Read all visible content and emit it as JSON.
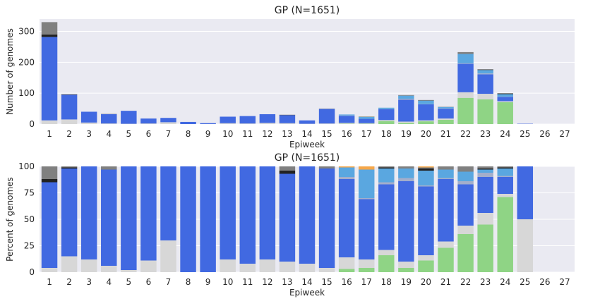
{
  "colors": {
    "background": "#ffffff",
    "plot_bg": "#eaeaf2",
    "grid": "#ffffff",
    "text": "#262626"
  },
  "series_colors": {
    "green": "#8fd485",
    "lightgray": "#d7d7d7",
    "blue": "#4169e1",
    "lightblue": "#5aa7e0",
    "steel": "#a3aecb",
    "black": "#222222",
    "gray": "#808080",
    "orange": "#f5a74a"
  },
  "chart_data": [
    {
      "type": "bar",
      "stacked": true,
      "title": "GP (N=1651)",
      "xlabel": "Epiweek",
      "ylabel": "Number of genomes",
      "ylim": [
        0,
        340
      ],
      "yticks": [
        0,
        100,
        200,
        300
      ],
      "grid": true,
      "categories": [
        "1",
        "2",
        "3",
        "4",
        "5",
        "6",
        "7",
        "8",
        "9",
        "10",
        "11",
        "12",
        "13",
        "14",
        "15",
        "16",
        "17",
        "18",
        "19",
        "20",
        "21",
        "22",
        "23",
        "24",
        "25",
        "26",
        "27"
      ],
      "series": [
        {
          "color_key": "green",
          "values": [
            0,
            0,
            0,
            0,
            0,
            0,
            0,
            0,
            0,
            0,
            0,
            0,
            0,
            0,
            0,
            1,
            1,
            10,
            4,
            9,
            14,
            85,
            80,
            71,
            0,
            0,
            0
          ]
        },
        {
          "color_key": "lightgray",
          "values": [
            12,
            15,
            5,
            2,
            1,
            2,
            6,
            0,
            0,
            3,
            2,
            4,
            3,
            1,
            2,
            3,
            2,
            3,
            4,
            3,
            4,
            18,
            18,
            3,
            0,
            0,
            0
          ]
        },
        {
          "color_key": "blue",
          "values": [
            270,
            80,
            35,
            30,
            42,
            16,
            14,
            7,
            3,
            21,
            24,
            28,
            26,
            11,
            47,
            23,
            14,
            35,
            71,
            52,
            32,
            92,
            63,
            14,
            1,
            0,
            0
          ]
        },
        {
          "color_key": "steel",
          "values": [
            0,
            0,
            0,
            0,
            0,
            0,
            0,
            0,
            0,
            0,
            0,
            0,
            0,
            0,
            0,
            1,
            0,
            1,
            3,
            1,
            1,
            2,
            3,
            1,
            0,
            0,
            0
          ]
        },
        {
          "color_key": "lightblue",
          "values": [
            0,
            0,
            0,
            0,
            0,
            0,
            0,
            0,
            0,
            0,
            0,
            0,
            0,
            0,
            0,
            3,
            7,
            4,
            10,
            11,
            4,
            30,
            11,
            8,
            0,
            0,
            0
          ]
        },
        {
          "color_key": "black",
          "values": [
            8,
            1,
            0,
            0,
            0,
            0,
            0,
            0,
            0,
            0,
            0,
            0,
            1,
            0,
            0,
            0,
            0,
            0,
            0,
            1,
            0,
            0,
            1,
            2,
            0,
            0,
            0
          ]
        },
        {
          "color_key": "gray",
          "values": [
            40,
            1,
            0,
            1,
            0,
            0,
            0,
            0,
            0,
            0,
            0,
            0,
            0,
            0,
            1,
            0,
            0,
            0,
            2,
            1,
            1,
            6,
            2,
            1,
            0,
            0,
            0
          ]
        },
        {
          "color_key": "orange",
          "values": [
            0,
            0,
            0,
            0,
            0,
            0,
            0,
            0,
            0,
            0,
            0,
            0,
            0,
            0,
            0,
            0,
            1,
            0,
            0,
            0,
            0,
            0,
            0,
            0,
            0,
            0,
            0
          ]
        }
      ]
    },
    {
      "type": "bar",
      "stacked": true,
      "title": "GP (N=1651)",
      "xlabel": "Epiweek",
      "ylabel": "Percent of genomes",
      "ylim": [
        0,
        100
      ],
      "yticks": [
        0,
        25,
        50,
        75,
        100
      ],
      "grid": true,
      "categories": [
        "1",
        "2",
        "3",
        "4",
        "5",
        "6",
        "7",
        "8",
        "9",
        "10",
        "11",
        "12",
        "13",
        "14",
        "15",
        "16",
        "17",
        "18",
        "19",
        "20",
        "21",
        "22",
        "23",
        "24",
        "25",
        "26",
        "27"
      ],
      "series": [
        {
          "color_key": "green",
          "values": [
            0,
            0,
            0,
            0,
            0,
            0,
            0,
            0,
            0,
            0,
            0,
            0,
            0,
            0,
            0,
            3,
            4,
            16,
            4,
            11,
            23,
            36,
            45,
            71,
            0,
            0,
            0
          ]
        },
        {
          "color_key": "lightgray",
          "values": [
            4,
            15,
            12,
            6,
            2,
            11,
            30,
            0,
            0,
            12,
            8,
            12,
            10,
            8,
            4,
            11,
            8,
            5,
            6,
            5,
            6,
            8,
            11,
            3,
            50,
            0,
            0
          ]
        },
        {
          "color_key": "blue",
          "values": [
            81,
            83,
            88,
            91,
            98,
            89,
            70,
            100,
            100,
            88,
            92,
            88,
            83,
            92,
            94,
            74,
            57,
            62,
            76,
            65,
            59,
            39,
            34,
            16,
            50,
            0,
            0
          ]
        },
        {
          "color_key": "steel",
          "values": [
            0,
            0,
            0,
            0,
            0,
            0,
            0,
            0,
            0,
            0,
            0,
            0,
            0,
            0,
            0,
            2,
            1,
            2,
            3,
            1,
            1,
            3,
            4,
            1,
            0,
            0,
            0
          ]
        },
        {
          "color_key": "lightblue",
          "values": [
            0,
            0,
            0,
            0,
            0,
            0,
            0,
            0,
            0,
            0,
            0,
            0,
            0,
            0,
            0,
            9,
            27,
            13,
            9,
            14,
            8,
            9,
            3,
            7,
            0,
            0,
            0
          ]
        },
        {
          "color_key": "black",
          "values": [
            3,
            1,
            0,
            0,
            0,
            0,
            0,
            0,
            0,
            0,
            0,
            0,
            3,
            0,
            0,
            0,
            0,
            1,
            0,
            2,
            0,
            0,
            1,
            1,
            0,
            0,
            0
          ]
        },
        {
          "color_key": "gray",
          "values": [
            12,
            1,
            0,
            3,
            0,
            0,
            0,
            0,
            0,
            0,
            0,
            0,
            4,
            0,
            2,
            0,
            0,
            1,
            2,
            1,
            3,
            5,
            2,
            1,
            0,
            0,
            0
          ]
        },
        {
          "color_key": "orange",
          "values": [
            0,
            0,
            0,
            0,
            0,
            0,
            0,
            0,
            0,
            0,
            0,
            0,
            0,
            0,
            0,
            1,
            3,
            0,
            0,
            1,
            0,
            0,
            0,
            0,
            0,
            0,
            0
          ]
        }
      ]
    }
  ]
}
